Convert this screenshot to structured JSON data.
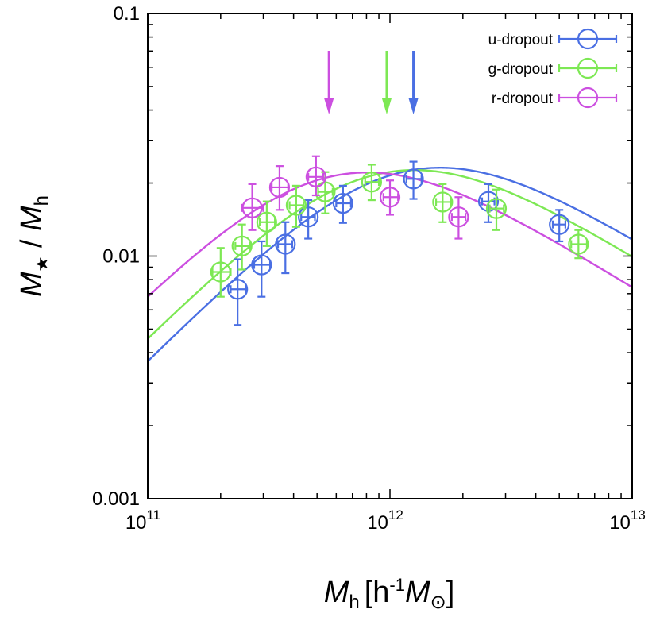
{
  "chart_data": {
    "type": "scatter",
    "title": "",
    "xlabel": {
      "main": "M",
      "sub": "h",
      "bracket_open": "[h",
      "sup": "-1",
      "unit_main": "M",
      "unit_sub": "⊙",
      "bracket_close": "]"
    },
    "ylabel": {
      "main": "M",
      "sub1": "★",
      "slash": " / ",
      "main2": "M",
      "sub2": "h"
    },
    "xscale": "log",
    "yscale": "log",
    "xlim": [
      100000000000.0,
      10000000000000.0
    ],
    "ylim": [
      0.001,
      0.1
    ],
    "x_ticks": [
      {
        "value": 100000000000.0,
        "base": "10",
        "exp": "11"
      },
      {
        "value": 1000000000000.0,
        "base": "10",
        "exp": "12"
      },
      {
        "value": 10000000000000.0,
        "base": "10",
        "exp": "13"
      }
    ],
    "y_ticks": [
      {
        "value": 0.001,
        "label": "0.001"
      },
      {
        "value": 0.01,
        "label": "0.01"
      },
      {
        "value": 0.1,
        "label": "0.1"
      }
    ],
    "grid": false,
    "legend_position": "top-right",
    "series": [
      {
        "name": "u-dropout",
        "color": "#4a6fe3",
        "fit": {
          "A": 0.0225,
          "M1": 1200000000000.0,
          "beta": 1.0,
          "gamma": 0.62
        },
        "arrow_x": 1250000000000.0,
        "points": [
          {
            "x": 235000000000.0,
            "y": 0.0073,
            "ylo": 0.0052,
            "yhi": 0.0097,
            "xlo": 220000000000.0,
            "xhi": 255000000000.0
          },
          {
            "x": 295000000000.0,
            "y": 0.0092,
            "ylo": 0.0068,
            "yhi": 0.0115,
            "xlo": 275000000000.0,
            "xhi": 320000000000.0
          },
          {
            "x": 370000000000.0,
            "y": 0.0112,
            "ylo": 0.0085,
            "yhi": 0.0138,
            "xlo": 345000000000.0,
            "xhi": 395000000000.0
          },
          {
            "x": 460000000000.0,
            "y": 0.0145,
            "ylo": 0.0118,
            "yhi": 0.017,
            "xlo": 430000000000.0,
            "xhi": 490000000000.0
          },
          {
            "x": 640000000000.0,
            "y": 0.0165,
            "ylo": 0.0137,
            "yhi": 0.0195,
            "xlo": 600000000000.0,
            "xhi": 690000000000.0
          },
          {
            "x": 1250000000000.0,
            "y": 0.0208,
            "ylo": 0.0172,
            "yhi": 0.0245,
            "xlo": 1170000000000.0,
            "xhi": 1350000000000.0
          },
          {
            "x": 2550000000000.0,
            "y": 0.0168,
            "ylo": 0.0138,
            "yhi": 0.0198,
            "xlo": 2400000000000.0,
            "xhi": 2700000000000.0
          },
          {
            "x": 5000000000000.0,
            "y": 0.0135,
            "ylo": 0.0115,
            "yhi": 0.0155,
            "xlo": 4700000000000.0,
            "xhi": 5300000000000.0
          }
        ]
      },
      {
        "name": "g-dropout",
        "color": "#7de854",
        "fit": {
          "A": 0.022,
          "M1": 940000000000.0,
          "beta": 1.0,
          "gamma": 0.62
        },
        "arrow_x": 970000000000.0,
        "points": [
          {
            "x": 200000000000.0,
            "y": 0.0086,
            "ylo": 0.0068,
            "yhi": 0.0108,
            "xlo": 185000000000.0,
            "xhi": 220000000000.0
          },
          {
            "x": 245000000000.0,
            "y": 0.011,
            "ylo": 0.0088,
            "yhi": 0.0135,
            "xlo": 230000000000.0,
            "xhi": 265000000000.0
          },
          {
            "x": 310000000000.0,
            "y": 0.0138,
            "ylo": 0.011,
            "yhi": 0.0168,
            "xlo": 290000000000.0,
            "xhi": 335000000000.0
          },
          {
            "x": 410000000000.0,
            "y": 0.0162,
            "ylo": 0.0132,
            "yhi": 0.0195,
            "xlo": 385000000000.0,
            "xhi": 440000000000.0
          },
          {
            "x": 540000000000.0,
            "y": 0.0184,
            "ylo": 0.015,
            "yhi": 0.0222,
            "xlo": 505000000000.0,
            "xhi": 580000000000.0
          },
          {
            "x": 840000000000.0,
            "y": 0.0202,
            "ylo": 0.017,
            "yhi": 0.0238,
            "xlo": 790000000000.0,
            "xhi": 900000000000.0
          },
          {
            "x": 1650000000000.0,
            "y": 0.0167,
            "ylo": 0.0138,
            "yhi": 0.0198,
            "xlo": 1550000000000.0,
            "xhi": 1780000000000.0
          },
          {
            "x": 2750000000000.0,
            "y": 0.0157,
            "ylo": 0.0128,
            "yhi": 0.0188,
            "xlo": 2580000000000.0,
            "xhi": 2950000000000.0
          },
          {
            "x": 6000000000000.0,
            "y": 0.0112,
            "ylo": 0.0098,
            "yhi": 0.0128,
            "xlo": 5600000000000.0,
            "xhi": 6500000000000.0
          }
        ]
      },
      {
        "name": "r-dropout",
        "color": "#cc4fe0",
        "fit": {
          "A": 0.0215,
          "M1": 600000000000.0,
          "beta": 1.0,
          "gamma": 0.62
        },
        "arrow_x": 560000000000.0,
        "points": [
          {
            "x": 270000000000.0,
            "y": 0.0158,
            "ylo": 0.0128,
            "yhi": 0.0198,
            "xlo": 245000000000.0,
            "xhi": 300000000000.0
          },
          {
            "x": 350000000000.0,
            "y": 0.0192,
            "ylo": 0.0155,
            "yhi": 0.0235,
            "xlo": 325000000000.0,
            "xhi": 380000000000.0
          },
          {
            "x": 495000000000.0,
            "y": 0.0212,
            "ylo": 0.0178,
            "yhi": 0.0258,
            "xlo": 460000000000.0,
            "xhi": 530000000000.0
          },
          {
            "x": 1000000000000.0,
            "y": 0.0175,
            "ylo": 0.0148,
            "yhi": 0.0205,
            "xlo": 940000000000.0,
            "xhi": 1080000000000.0
          },
          {
            "x": 1920000000000.0,
            "y": 0.0145,
            "ylo": 0.0118,
            "yhi": 0.0175,
            "xlo": 1800000000000.0,
            "xhi": 2050000000000.0
          }
        ]
      }
    ]
  }
}
